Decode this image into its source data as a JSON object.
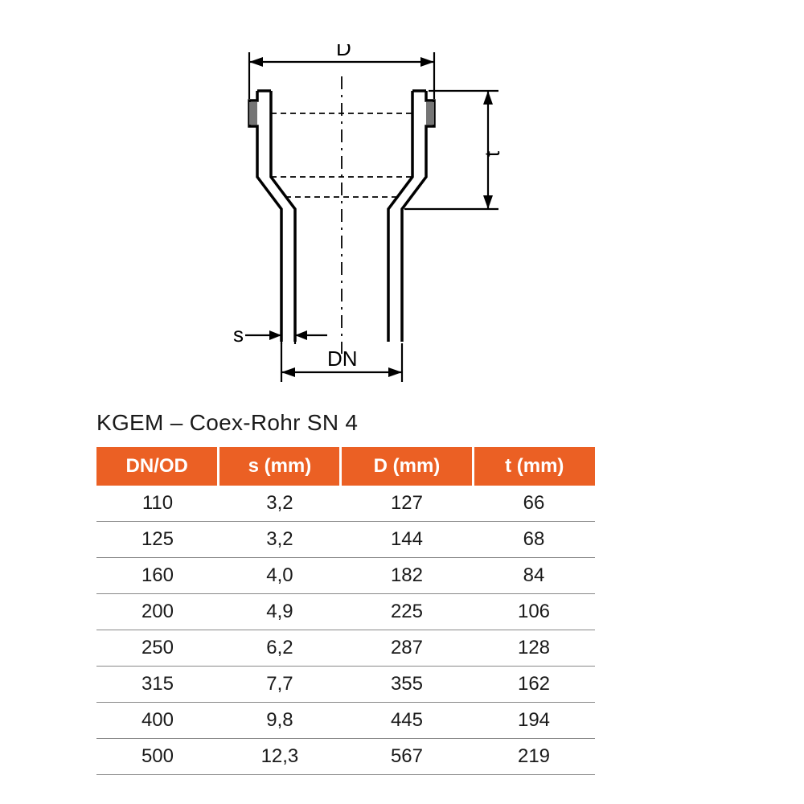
{
  "diagram": {
    "labels": {
      "D": "D",
      "t": "t",
      "s": "s",
      "DN": "DN"
    },
    "stroke_color": "#000000",
    "stroke_width_main": 3.5,
    "stroke_width_dim": 2.2,
    "dash_pattern": "8 6"
  },
  "table": {
    "title": "KGEM – Coex-Rohr SN 4",
    "header_bg": "#eb6024",
    "header_text_color": "#ffffff",
    "row_text_color": "#1a1a1a",
    "row_border_color": "#888888",
    "columns": [
      "DN/OD",
      "s (mm)",
      "D (mm)",
      "t (mm)"
    ],
    "column_widths": [
      "150px",
      "150px",
      "162px",
      "150px"
    ],
    "rows": [
      [
        "110",
        "3,2",
        "127",
        "66"
      ],
      [
        "125",
        "3,2",
        "144",
        "68"
      ],
      [
        "160",
        "4,0",
        "182",
        "84"
      ],
      [
        "200",
        "4,9",
        "225",
        "106"
      ],
      [
        "250",
        "6,2",
        "287",
        "128"
      ],
      [
        "315",
        "7,7",
        "355",
        "162"
      ],
      [
        "400",
        "9,8",
        "445",
        "194"
      ],
      [
        "500",
        "12,3",
        "567",
        "219"
      ]
    ]
  }
}
